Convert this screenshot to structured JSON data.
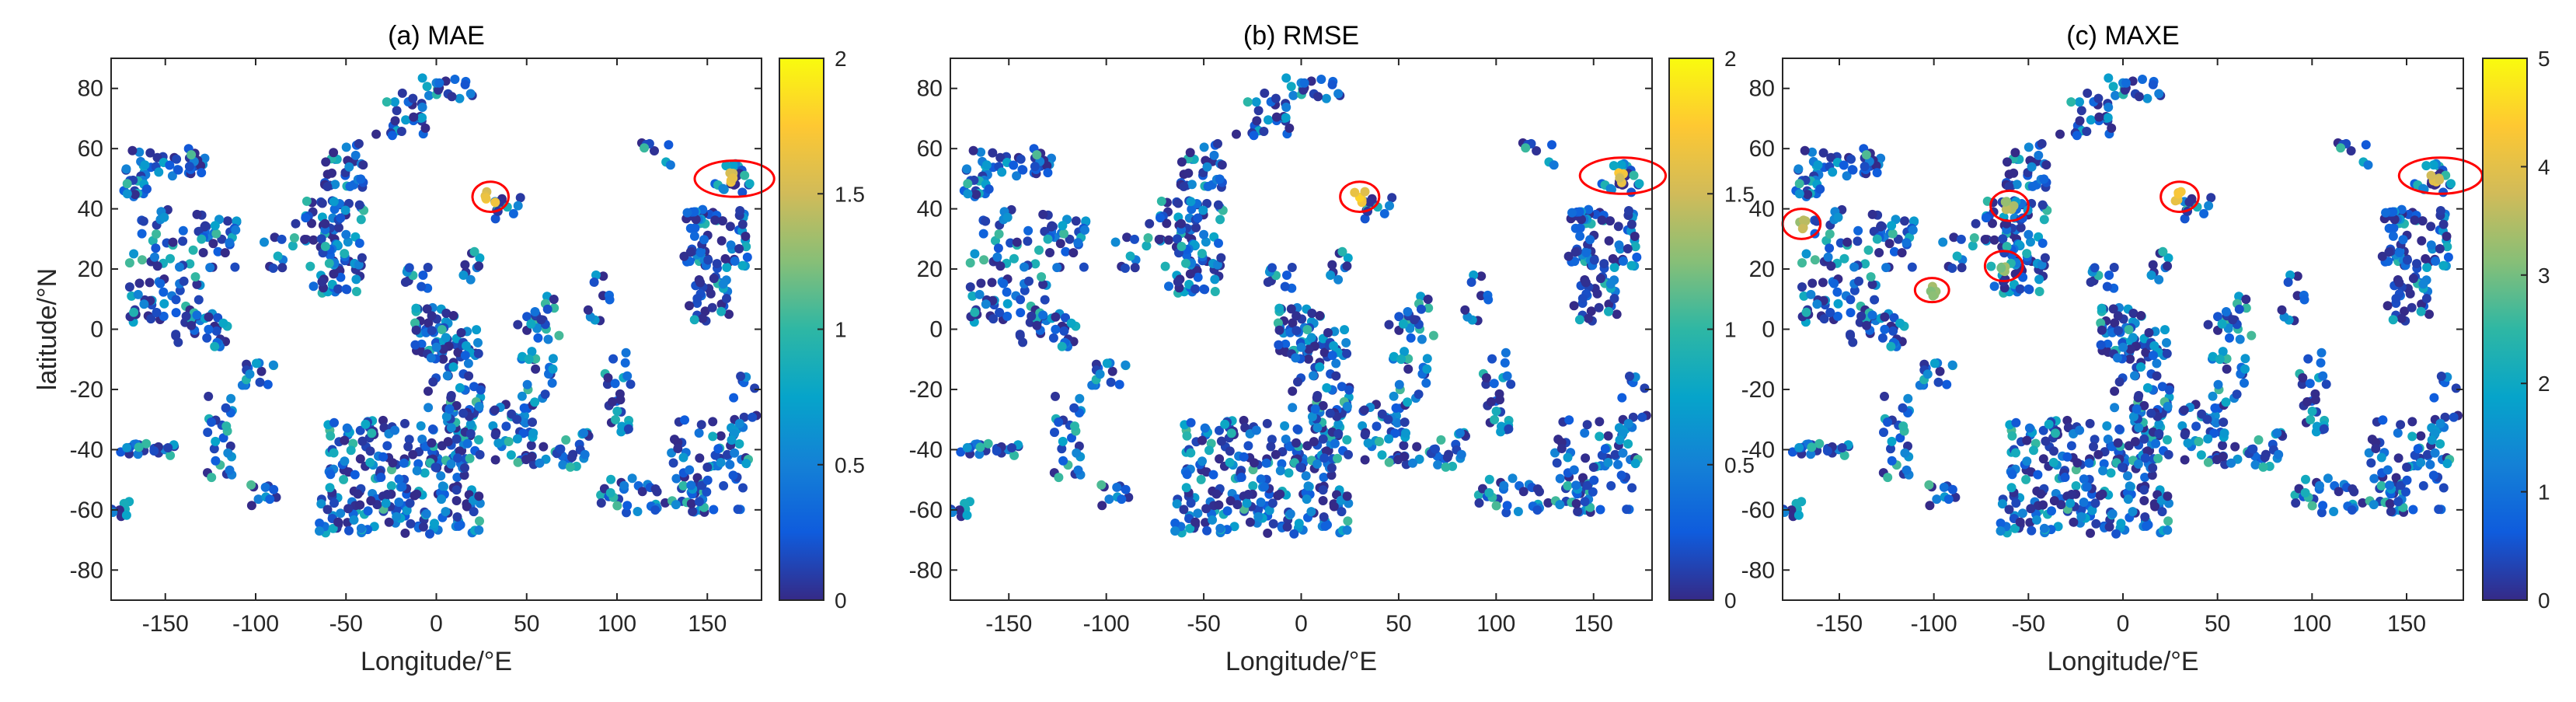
{
  "figure": {
    "xlabel": "Longitude/°E",
    "ylabel": "latitude/°N"
  },
  "colors": {
    "viridis_stops": [
      "#352a87",
      "#0f5cdd",
      "#1481d6",
      "#06a4ca",
      "#2eb7a4",
      "#87bf77",
      "#d1bb59",
      "#fec832",
      "#f9fb0e"
    ],
    "highlight": "#ff0000",
    "axis": "#262626"
  },
  "chart_data": [
    {
      "type": "scatter",
      "title": "(a) MAE",
      "xlim": [
        -180,
        180
      ],
      "ylim": [
        -90,
        90
      ],
      "xticks": [
        -150,
        -100,
        -50,
        0,
        50,
        100,
        150
      ],
      "yticks": [
        -80,
        -60,
        -40,
        -20,
        0,
        20,
        40,
        60,
        80
      ],
      "colorbar": {
        "min": 0,
        "max": 2,
        "ticks": [
          0,
          0.5,
          1,
          1.5,
          2
        ],
        "tick_labels": [
          "0",
          "0.5",
          "1",
          "1.5",
          "2"
        ]
      },
      "hotspots": [
        {
          "x": 30,
          "y": 44,
          "value": 1.8
        },
        {
          "x": 165,
          "y": 50,
          "value": 1.7
        }
      ],
      "highlights": [
        {
          "x": 30,
          "y": 44,
          "rx": 10,
          "ry": 5
        },
        {
          "x": 165,
          "y": 50,
          "rx": 22,
          "ry": 6
        }
      ]
    },
    {
      "type": "scatter",
      "title": "(b) RMSE",
      "xlim": [
        -180,
        180
      ],
      "ylim": [
        -90,
        90
      ],
      "xticks": [
        -150,
        -100,
        -50,
        0,
        50,
        100,
        150
      ],
      "yticks": [
        -80,
        -60,
        -40,
        -20,
        0,
        20,
        40,
        60,
        80
      ],
      "colorbar": {
        "min": 0,
        "max": 2,
        "ticks": [
          0,
          0.5,
          1,
          1.5,
          2
        ],
        "tick_labels": [
          "0",
          "0.5",
          "1",
          "1.5",
          "2"
        ]
      },
      "hotspots": [
        {
          "x": 30,
          "y": 44,
          "value": 1.85
        },
        {
          "x": 165,
          "y": 50,
          "value": 1.75
        }
      ],
      "highlights": [
        {
          "x": 30,
          "y": 44,
          "rx": 10,
          "ry": 5
        },
        {
          "x": 165,
          "y": 51,
          "rx": 22,
          "ry": 6
        }
      ]
    },
    {
      "type": "scatter",
      "title": "(c) MAXE",
      "xlim": [
        -180,
        180
      ],
      "ylim": [
        -90,
        90
      ],
      "xticks": [
        -150,
        -100,
        -50,
        0,
        50,
        100,
        150
      ],
      "yticks": [
        -80,
        -60,
        -40,
        -20,
        0,
        20,
        40,
        60,
        80
      ],
      "colorbar": {
        "min": 0,
        "max": 5,
        "ticks": [
          0,
          1,
          2,
          3,
          4,
          5
        ],
        "tick_labels": [
          "0",
          "1",
          "2",
          "3",
          "4",
          "5"
        ]
      },
      "hotspots": [
        {
          "x": 30,
          "y": 44,
          "value": 4.5
        },
        {
          "x": 165,
          "y": 51,
          "value": 4.2
        },
        {
          "x": -170,
          "y": 35,
          "value": 3.8
        },
        {
          "x": -100,
          "y": 13,
          "value": 3.5
        },
        {
          "x": -60,
          "y": 41,
          "value": 3.6
        },
        {
          "x": -62,
          "y": 21,
          "value": 3.4
        }
      ],
      "highlights": [
        {
          "x": 30,
          "y": 44,
          "rx": 10,
          "ry": 5
        },
        {
          "x": 168,
          "y": 51,
          "rx": 22,
          "ry": 6
        },
        {
          "x": -170,
          "y": 35,
          "rx": 10,
          "ry": 5
        },
        {
          "x": -101,
          "y": 13,
          "rx": 9,
          "ry": 4
        },
        {
          "x": -60,
          "y": 41,
          "rx": 10,
          "ry": 5
        },
        {
          "x": -63,
          "y": 21,
          "rx": 10,
          "ry": 5
        }
      ]
    }
  ]
}
